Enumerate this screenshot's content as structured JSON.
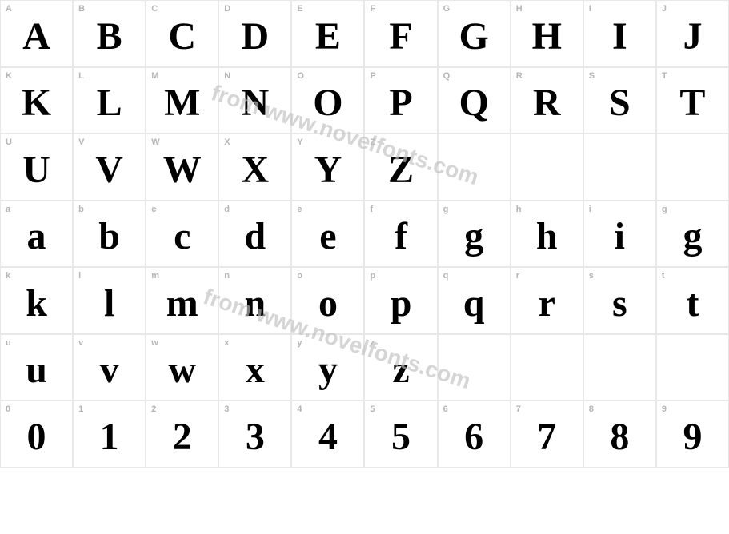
{
  "watermark_text": "from www.novelfonts.com",
  "watermark_color": "#c0c0c0",
  "border_color": "#e8e8e8",
  "label_color": "#b5b5b5",
  "glyph_color": "#000000",
  "background_color": "#ffffff",
  "label_fontsize": 11,
  "glyph_fontsize": 48,
  "grid": {
    "columns": 10,
    "cell_height": 83.5,
    "rows": [
      {
        "labels": [
          "A",
          "B",
          "C",
          "D",
          "E",
          "F",
          "G",
          "H",
          "I",
          "J"
        ],
        "glyphs": [
          "A",
          "B",
          "C",
          "D",
          "E",
          "F",
          "G",
          "H",
          "I",
          "J"
        ]
      },
      {
        "labels": [
          "K",
          "L",
          "M",
          "N",
          "O",
          "P",
          "Q",
          "R",
          "S",
          "T"
        ],
        "glyphs": [
          "K",
          "L",
          "M",
          "N",
          "O",
          "P",
          "Q",
          "R",
          "S",
          "T"
        ]
      },
      {
        "labels": [
          "U",
          "V",
          "W",
          "X",
          "Y",
          "Z",
          "",
          "",
          "",
          ""
        ],
        "glyphs": [
          "U",
          "V",
          "W",
          "X",
          "Y",
          "Z",
          "",
          "",
          "",
          ""
        ]
      },
      {
        "labels": [
          "a",
          "b",
          "c",
          "d",
          "e",
          "f",
          "g",
          "h",
          "i",
          "g"
        ],
        "glyphs": [
          "a",
          "b",
          "c",
          "d",
          "e",
          "f",
          "g",
          "h",
          "i",
          "g"
        ]
      },
      {
        "labels": [
          "k",
          "l",
          "m",
          "n",
          "o",
          "p",
          "q",
          "r",
          "s",
          "t"
        ],
        "glyphs": [
          "k",
          "l",
          "m",
          "n",
          "o",
          "p",
          "q",
          "r",
          "s",
          "t"
        ]
      },
      {
        "labels": [
          "u",
          "v",
          "w",
          "x",
          "y",
          "z",
          "",
          "",
          "",
          ""
        ],
        "glyphs": [
          "u",
          "v",
          "w",
          "x",
          "y",
          "z",
          "",
          "",
          "",
          ""
        ]
      },
      {
        "labels": [
          "0",
          "1",
          "2",
          "3",
          "4",
          "5",
          "6",
          "7",
          "8",
          "9"
        ],
        "glyphs": [
          "0",
          "1",
          "2",
          "3",
          "4",
          "5",
          "6",
          "7",
          "8",
          "9"
        ]
      }
    ]
  }
}
